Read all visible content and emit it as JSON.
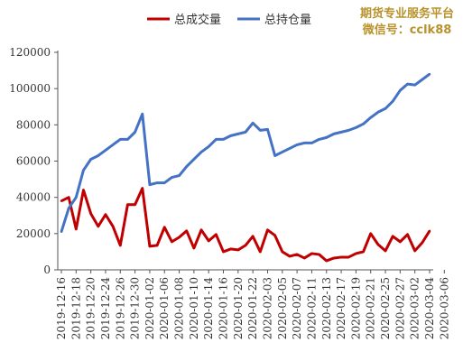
{
  "watermark": {
    "line1": "期货专业服务平台",
    "line2": "微信号：cclk88"
  },
  "chart_data": {
    "type": "line",
    "title": "",
    "xlabel": "",
    "ylabel": "",
    "ylim": [
      0,
      120000
    ],
    "yticks": [
      "0",
      "20000",
      "40000",
      "60000",
      "80000",
      "100000",
      "120000"
    ],
    "xtick_labels": [
      "2019-12-16",
      "2019-12-18",
      "2019-12-20",
      "2019-12-24",
      "2019-12-26",
      "2019-12-30",
      "2020-01-02",
      "2020-01-06",
      "2020-01-08",
      "2020-01-10",
      "2020-01-14",
      "2020-01-16",
      "2020-01-20",
      "2020-01-22",
      "2020-02-03",
      "2020-02-05",
      "2020-02-07",
      "2020-02-11",
      "2020-02-13",
      "2020-02-17",
      "2020-02-19",
      "2020-02-21",
      "2020-02-25",
      "2020-02-27",
      "2020-03-02",
      "2020-03-04",
      "2020-03-06"
    ],
    "grid": false,
    "legend_position": "top",
    "series": [
      {
        "name": "总成交量",
        "color": "#c00000",
        "values": [
          38000,
          40000,
          22500,
          44000,
          31000,
          24000,
          30500,
          24000,
          13500,
          36000,
          36000,
          45000,
          13000,
          13500,
          23500,
          15500,
          18000,
          21500,
          12000,
          22000,
          16000,
          19500,
          10000,
          11500,
          11000,
          13500,
          18500,
          10000,
          22000,
          19000,
          10000,
          7500,
          8500,
          6500,
          9000,
          8500,
          5000,
          6500,
          7000,
          7000,
          9000,
          10000,
          20000,
          14000,
          10500,
          18500,
          15500,
          19500,
          10500,
          15000,
          21500
        ]
      },
      {
        "name": "总持仓量",
        "color": "#4472c4",
        "values": [
          21000,
          34000,
          40000,
          55000,
          61000,
          63000,
          66000,
          69000,
          72000,
          72000,
          76000,
          86000,
          47000,
          48000,
          48000,
          51000,
          52000,
          57000,
          61000,
          65000,
          68000,
          72000,
          72000,
          74000,
          75000,
          76000,
          81000,
          77000,
          77500,
          63000,
          65000,
          67000,
          69000,
          70000,
          70000,
          72000,
          73000,
          75000,
          76000,
          77000,
          78500,
          80500,
          84000,
          87000,
          89000,
          93000,
          99000,
          102500,
          102000,
          105000,
          108000
        ]
      }
    ]
  }
}
